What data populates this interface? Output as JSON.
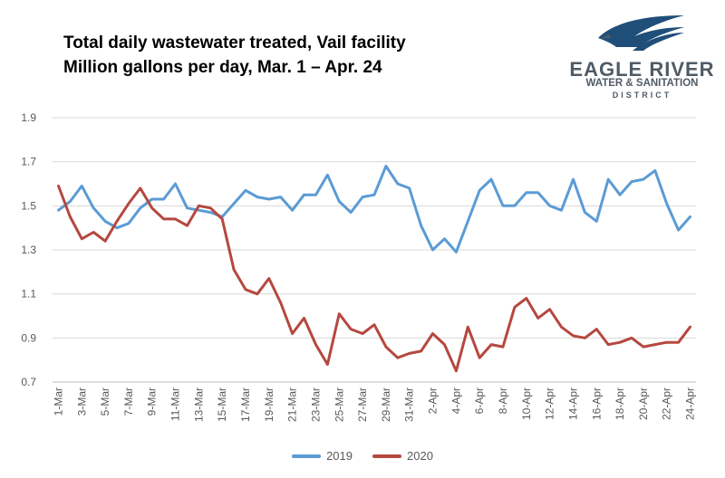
{
  "header": {
    "title_line1": "Total daily wastewater treated, Vail facility",
    "title_line2": "Million gallons per day, Mar. 1 – Apr. 24"
  },
  "logo": {
    "name": "EAGLE RIVER",
    "subtitle": "WATER & SANITATION",
    "subtitle2": "DISTRICT",
    "color": "#4f5b66",
    "accent": "#1f4e79"
  },
  "chart_data": {
    "type": "line",
    "x": [
      "1-Mar",
      "2-Mar",
      "3-Mar",
      "4-Mar",
      "5-Mar",
      "6-Mar",
      "7-Mar",
      "8-Mar",
      "9-Mar",
      "10-Mar",
      "11-Mar",
      "12-Mar",
      "13-Mar",
      "14-Mar",
      "15-Mar",
      "16-Mar",
      "17-Mar",
      "18-Mar",
      "19-Mar",
      "20-Mar",
      "21-Mar",
      "22-Mar",
      "23-Mar",
      "24-Mar",
      "25-Mar",
      "26-Mar",
      "27-Mar",
      "28-Mar",
      "29-Mar",
      "30-Mar",
      "31-Mar",
      "1-Apr",
      "2-Apr",
      "3-Apr",
      "4-Apr",
      "5-Apr",
      "6-Apr",
      "7-Apr",
      "8-Apr",
      "9-Apr",
      "10-Apr",
      "11-Apr",
      "12-Apr",
      "13-Apr",
      "14-Apr",
      "15-Apr",
      "16-Apr",
      "17-Apr",
      "18-Apr",
      "19-Apr",
      "20-Apr",
      "21-Apr",
      "22-Apr",
      "23-Apr",
      "24-Apr"
    ],
    "x_tick_labels": [
      "1-Mar",
      "3-Mar",
      "5-Mar",
      "7-Mar",
      "9-Mar",
      "11-Mar",
      "13-Mar",
      "15-Mar",
      "17-Mar",
      "19-Mar",
      "21-Mar",
      "23-Mar",
      "25-Mar",
      "27-Mar",
      "29-Mar",
      "31-Mar",
      "2-Apr",
      "4-Apr",
      "6-Apr",
      "8-Apr",
      "10-Apr",
      "12-Apr",
      "14-Apr",
      "16-Apr",
      "18-Apr",
      "20-Apr",
      "22-Apr",
      "24-Apr"
    ],
    "y_ticks": [
      "0.7",
      "0.9",
      "1.1",
      "1.3",
      "1.5",
      "1.7",
      "1.9"
    ],
    "ylim": [
      0.7,
      1.9
    ],
    "grid": true,
    "legend_position": "bottom",
    "series": [
      {
        "name": "2019",
        "color": "#5b9bd5",
        "values": [
          1.48,
          1.52,
          1.59,
          1.49,
          1.43,
          1.4,
          1.42,
          1.49,
          1.53,
          1.53,
          1.6,
          1.49,
          1.48,
          1.47,
          1.45,
          1.51,
          1.57,
          1.54,
          1.53,
          1.54,
          1.48,
          1.55,
          1.55,
          1.64,
          1.52,
          1.47,
          1.54,
          1.55,
          1.68,
          1.6,
          1.58,
          1.41,
          1.3,
          1.35,
          1.29,
          1.43,
          1.57,
          1.62,
          1.5,
          1.5,
          1.56,
          1.56,
          1.5,
          1.48,
          1.62,
          1.47,
          1.43,
          1.62,
          1.55,
          1.61,
          1.62,
          1.66,
          1.51,
          1.39,
          1.45
        ]
      },
      {
        "name": "2020",
        "color": "#b5483f",
        "values": [
          1.59,
          1.45,
          1.35,
          1.38,
          1.34,
          1.43,
          1.51,
          1.58,
          1.49,
          1.44,
          1.44,
          1.41,
          1.5,
          1.49,
          1.44,
          1.21,
          1.12,
          1.1,
          1.17,
          1.06,
          0.92,
          0.99,
          0.87,
          0.78,
          1.01,
          0.94,
          0.92,
          0.96,
          0.86,
          0.81,
          0.83,
          0.84,
          0.92,
          0.87,
          0.75,
          0.95,
          0.81,
          0.87,
          0.86,
          1.04,
          1.08,
          0.99,
          1.03,
          0.95,
          0.91,
          0.9,
          0.94,
          0.87,
          0.88,
          0.9,
          0.86,
          0.87,
          0.88,
          0.88,
          0.95
        ]
      }
    ]
  }
}
